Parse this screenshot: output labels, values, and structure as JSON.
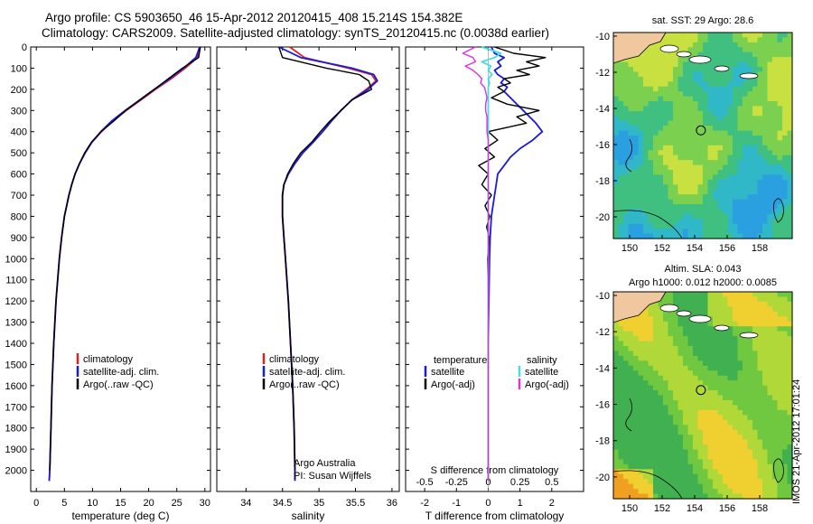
{
  "header": {
    "line1": "Argo profile: CS 5903650_46 15-Apr-2012 20120415_408 15.214S 154.382E",
    "line2": "Climatology: CARS2009. Satellite-adjusted climatology: synTS_20120415.nc (0.0038d earlier)"
  },
  "colors": {
    "climatology": "#e02020",
    "satellite": "#1a1adc",
    "argo": "#000000",
    "sal_satellite": "#40e0e0",
    "sal_argo": "#e030e0"
  },
  "chart_data": [
    {
      "type": "line",
      "title": "",
      "xlabel": "temperature (deg C)",
      "ylabel": "",
      "xlim": [
        -1,
        31
      ],
      "ylim": [
        2100,
        0
      ],
      "xticks": [
        "0",
        "5",
        "10",
        "15",
        "20",
        "25",
        "30"
      ],
      "yticks": [
        "0",
        "100",
        "200",
        "300",
        "400",
        "500",
        "600",
        "700",
        "800",
        "900",
        "1000",
        "1100",
        "1200",
        "1300",
        "1400",
        "1500",
        "1600",
        "1700",
        "1800",
        "1900",
        "2000"
      ],
      "depth": [
        0,
        50,
        100,
        150,
        200,
        250,
        300,
        350,
        400,
        450,
        500,
        550,
        600,
        650,
        700,
        800,
        900,
        1000,
        1200,
        1400,
        1600,
        1800,
        2000,
        2050
      ],
      "series": [
        {
          "name": "climatology",
          "values": [
            29.0,
            28.7,
            26.5,
            24.0,
            21.2,
            18.6,
            16.0,
            13.6,
            11.6,
            9.9,
            8.7,
            7.7,
            6.9,
            6.3,
            5.8,
            5.0,
            4.5,
            4.1,
            3.5,
            3.1,
            2.8,
            2.6,
            2.4,
            2.3
          ]
        },
        {
          "name": "satellite-adj. clim.",
          "values": [
            29.1,
            28.4,
            26.2,
            23.7,
            21.0,
            18.4,
            15.8,
            13.4,
            11.5,
            9.9,
            8.7,
            7.7,
            6.9,
            6.3,
            5.8,
            5.0,
            4.5,
            4.1,
            3.5,
            3.1,
            2.8,
            2.6,
            2.4,
            2.3
          ]
        },
        {
          "name": "Argo(..raw -QC)",
          "values": [
            29.2,
            28.9,
            26.0,
            23.5,
            21.0,
            18.5,
            15.9,
            13.8,
            11.5,
            9.8,
            8.6,
            7.7,
            6.9,
            6.3,
            5.8,
            5.0,
            4.5,
            4.1,
            3.5,
            3.1,
            2.8,
            2.6,
            2.4,
            null
          ]
        }
      ],
      "legend": {
        "position": "bottom-center",
        "entries": [
          "climatology",
          "satellite-adj. clim.",
          "Argo(..raw -QC)"
        ]
      }
    },
    {
      "type": "line",
      "title": "",
      "xlabel": "salinity",
      "xlim": [
        33.6,
        36.1
      ],
      "ylim": [
        2100,
        0
      ],
      "xticks": [
        "34",
        "34.5",
        "35",
        "35.5",
        "36"
      ],
      "depth": [
        0,
        50,
        100,
        130,
        160,
        200,
        250,
        300,
        350,
        400,
        450,
        500,
        550,
        600,
        650,
        700,
        800,
        900,
        1000,
        1200,
        1400,
        1600,
        1800,
        2000,
        2050
      ],
      "series": [
        {
          "name": "climatology",
          "values": [
            34.6,
            34.8,
            35.4,
            35.72,
            35.78,
            35.65,
            35.45,
            35.3,
            35.17,
            35.05,
            34.92,
            34.78,
            34.67,
            34.58,
            34.52,
            34.5,
            34.5,
            34.52,
            34.54,
            34.58,
            34.61,
            34.64,
            34.66,
            34.67,
            34.67
          ]
        },
        {
          "name": "satellite-adj. clim.",
          "values": [
            34.45,
            34.75,
            35.45,
            35.75,
            35.8,
            35.67,
            35.45,
            35.3,
            35.17,
            35.05,
            34.92,
            34.78,
            34.67,
            34.58,
            34.52,
            34.5,
            34.5,
            34.52,
            34.54,
            34.58,
            34.61,
            34.64,
            34.66,
            34.67,
            34.67
          ]
        },
        {
          "name": "Argo(..raw -QC)",
          "values": [
            34.45,
            34.5,
            35.1,
            35.55,
            35.68,
            35.72,
            35.45,
            35.3,
            35.15,
            35.02,
            34.9,
            34.75,
            34.65,
            34.57,
            34.52,
            34.5,
            34.5,
            34.52,
            34.54,
            34.58,
            34.61,
            34.64,
            34.66,
            34.67,
            null
          ]
        }
      ],
      "legend": {
        "position": "bottom-center",
        "entries": [
          "climatology",
          "satellite-adj. clim.",
          "Argo(..raw -QC)"
        ]
      },
      "annotation": [
        "Argo Australia",
        "PI: Susan Wijffels"
      ]
    },
    {
      "type": "line",
      "title": "",
      "xlabel": "T difference from climatology",
      "x2label": "S difference from climatology",
      "xlim": [
        -2.6,
        3.0
      ],
      "x2lim": [
        -0.65,
        0.75
      ],
      "ylim": [
        2100,
        0
      ],
      "xticks": [
        "-2",
        "-1",
        "0",
        "1",
        "2"
      ],
      "x2ticks": [
        "-0.5",
        "-0.25",
        "0",
        "0.25",
        "0.5"
      ],
      "depth": [
        0,
        30,
        50,
        70,
        90,
        110,
        130,
        150,
        170,
        190,
        210,
        240,
        270,
        300,
        330,
        360,
        400,
        440,
        480,
        520,
        560,
        600,
        650,
        700,
        750,
        800,
        850,
        900,
        1000,
        1200,
        1400,
        1600,
        1800,
        2000,
        2050
      ],
      "series": [
        {
          "name": "temperature satellite",
          "values": [
            0.1,
            0.2,
            0.5,
            0.3,
            0.4,
            0.2,
            0.3,
            0.5,
            0.4,
            0.6,
            0.5,
            0.7,
            0.9,
            1.1,
            1.3,
            1.5,
            1.7,
            1.4,
            1.0,
            0.7,
            0.5,
            0.3,
            0.25,
            0.2,
            0.15,
            0.1,
            0.08,
            0.06,
            0.04,
            0.02,
            0.0,
            0.0,
            0.0,
            0.0,
            0.0
          ]
        },
        {
          "name": "temperature Argo(-adj)",
          "values": [
            0.2,
            0.8,
            1.8,
            1.2,
            1.6,
            0.9,
            1.3,
            0.5,
            0.7,
            0.3,
            0.5,
            0.1,
            0.6,
            1.6,
            0.9,
            1.2,
            0.0,
            0.3,
            -0.1,
            0.2,
            -0.3,
            0.0,
            -0.2,
            0.1,
            -0.1,
            0.05,
            -0.05,
            0.03,
            -0.02,
            0.01,
            0.0,
            0.0,
            0.0,
            0.0,
            0.0
          ]
        },
        {
          "name": "salinity satellite",
          "values": [
            -0.05,
            0.1,
            0.05,
            -0.05,
            0.02,
            0.0,
            0.03,
            0.0,
            0.01,
            0.0,
            0.0,
            0.0,
            0.0,
            0.0,
            0.0,
            0.0,
            0.0,
            0.0,
            0.0,
            0.0,
            0.0,
            0.0,
            0.0,
            0.0,
            0.0,
            0.0,
            0.0,
            0.0,
            0.0,
            0.0,
            0.0,
            0.0,
            0.0,
            0.0,
            0.0
          ]
        },
        {
          "name": "salinity Argo(-adj)",
          "values": [
            -0.1,
            -0.2,
            -0.12,
            -0.1,
            -0.18,
            -0.12,
            -0.08,
            -0.05,
            -0.06,
            -0.03,
            -0.02,
            -0.01,
            -0.02,
            -0.02,
            -0.01,
            -0.01,
            -0.01,
            0.0,
            0.0,
            0.0,
            0.0,
            0.0,
            0.0,
            0.0,
            0.0,
            0.0,
            0.0,
            0.0,
            0.0,
            0.0,
            0.0,
            0.0,
            0.0,
            0.0,
            0.0
          ]
        }
      ],
      "legend": {
        "position": "bottom",
        "headers": [
          "temperature",
          "salinity"
        ],
        "entries": [
          "satellite",
          "Argo(-adj)",
          "satellite",
          "Argo(-adj)"
        ]
      }
    }
  ],
  "maps": {
    "sst": {
      "title": "sat. SST: 29 Argo: 28.6",
      "xticks": [
        "150",
        "152",
        "154",
        "156",
        "158"
      ],
      "yticks": [
        "-10",
        "-12",
        "-14",
        "-16",
        "-18",
        "-20"
      ],
      "xlim": [
        149,
        160
      ],
      "ylim": [
        -21.2,
        -9.8
      ],
      "argo_location": [
        154.382,
        -15.214
      ]
    },
    "sla": {
      "title1": "Altim. SLA: 0.043",
      "title2": "Argo h1000: 0.012 h2000: 0.0085",
      "xticks": [
        "150",
        "152",
        "154",
        "156",
        "158"
      ],
      "yticks": [
        "-10",
        "-12",
        "-14",
        "-16",
        "-18",
        "-20"
      ],
      "xlim": [
        149,
        160
      ],
      "ylim": [
        -21.2,
        -9.8
      ],
      "argo_location": [
        154.382,
        -15.214
      ]
    }
  },
  "footer": {
    "side_label": "IMOS 21-Apr-2012 17:01:24"
  }
}
